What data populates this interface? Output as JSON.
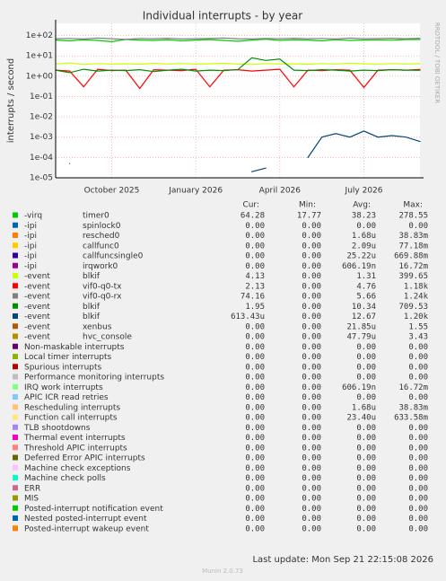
{
  "chart_data": {
    "type": "line",
    "title": "Individual interrupts - by year",
    "ylabel": "interrupts / second",
    "watermark": "RRDTOOL / TOBI OETIKER",
    "log_scale": true,
    "grid": true,
    "ylim": [
      1e-05,
      400
    ],
    "yticks": [
      {
        "value": 100,
        "label": "1e+02"
      },
      {
        "value": 10,
        "label": "1e+01"
      },
      {
        "value": 1,
        "label": "1e+00"
      },
      {
        "value": 0.1,
        "label": "1e-01"
      },
      {
        "value": 0.01,
        "label": "1e-02"
      },
      {
        "value": 0.001,
        "label": "1e-03"
      },
      {
        "value": 0.0001,
        "label": "1e-04"
      },
      {
        "value": 1e-05,
        "label": "1e-05"
      }
    ],
    "categories": [
      null,
      null,
      null,
      null,
      "October 2025",
      null,
      null,
      null,
      null,
      null,
      "January 2026",
      null,
      null,
      null,
      null,
      null,
      "April 2026",
      null,
      null,
      null,
      null,
      null,
      "July 2026",
      null,
      null,
      null,
      null
    ],
    "legend_headers": [
      "Cur:",
      "Min:",
      "Avg:",
      "Max:"
    ],
    "series": [
      {
        "name": "-virq",
        "label": "timer0",
        "color": "#00cc00",
        "values": [
          60,
          55,
          62,
          58,
          50,
          65,
          60,
          58,
          62,
          55,
          60,
          64,
          58,
          52,
          60,
          66,
          58,
          62,
          60,
          55,
          63,
          58,
          60,
          62,
          59,
          64,
          64.28
        ],
        "cur": "64.28",
        "min": "17.77",
        "avg": "38.23",
        "max": "278.55"
      },
      {
        "name": "-ipi",
        "label": "spinlock0",
        "color": "#0066b3",
        "cur": "0.00",
        "min": "0.00",
        "avg": "0.00",
        "max": "0.00"
      },
      {
        "name": "-ipi",
        "label": "resched0",
        "color": "#ff8000",
        "cur": "0.00",
        "min": "0.00",
        "avg": "1.68u",
        "max": "38.83m"
      },
      {
        "name": "-ipi",
        "label": "callfunc0",
        "color": "#ffcc00",
        "cur": "0.00",
        "min": "0.00",
        "avg": "2.09u",
        "max": "77.18m"
      },
      {
        "name": "-ipi",
        "label": "callfuncsingle0",
        "color": "#330099",
        "cur": "0.00",
        "min": "0.00",
        "avg": "25.22u",
        "max": "669.88m"
      },
      {
        "name": "-ipi",
        "label": "irqwork0",
        "color": "#990099",
        "cur": "0.00",
        "min": "0.00",
        "avg": "606.19n",
        "max": "16.72m"
      },
      {
        "name": "-event",
        "label": "blkif",
        "color": "#ccff00",
        "values": [
          4,
          4.5,
          3.8,
          4.2,
          4,
          4.1,
          3.9,
          4.3,
          4,
          4.2,
          4,
          4.1,
          4.3,
          4,
          3.8,
          4.2,
          4,
          4.1,
          3.9,
          4.2,
          4,
          4.3,
          4.1,
          4,
          4.2,
          4,
          4.13
        ],
        "cur": "4.13",
        "min": "0.00",
        "avg": "1.31",
        "max": "399.65"
      },
      {
        "name": "-event",
        "label": "vif0-q0-tx",
        "color": "#ff0000",
        "values": [
          2,
          1.8,
          0.3,
          2.2,
          1.9,
          2,
          0.25,
          2.1,
          2,
          1.9,
          2.2,
          0.3,
          2,
          2.1,
          1.8,
          2,
          2.2,
          0.3,
          2,
          1.9,
          2.1,
          2,
          0.28,
          2,
          2.1,
          2,
          2.13
        ],
        "cur": "2.13",
        "min": "0.00",
        "avg": "4.76",
        "max": "1.18k"
      },
      {
        "name": "-event",
        "label": "vif0-q0-rx",
        "color": "#808080",
        "values": [
          70,
          72,
          68,
          75,
          70,
          65,
          72,
          70,
          74,
          68,
          70,
          72,
          75,
          70,
          68,
          72,
          70,
          74,
          70,
          72,
          68,
          75,
          70,
          72,
          74,
          70,
          74.16
        ],
        "cur": "74.16",
        "min": "0.00",
        "avg": "5.66",
        "max": "1.24k"
      },
      {
        "name": "-event",
        "label": "blkif",
        "color": "#008f00",
        "values": [
          2,
          1.5,
          2.2,
          1.8,
          2,
          1.9,
          2.1,
          1.7,
          2,
          2.2,
          1.8,
          2,
          1.9,
          2.1,
          8,
          6,
          7,
          2,
          1.9,
          2.1,
          2,
          1.8,
          2,
          1.9,
          2.1,
          2,
          1.95
        ],
        "cur": "1.95",
        "min": "0.00",
        "avg": "10.34",
        "max": "709.53"
      },
      {
        "name": "-event",
        "label": "blkif",
        "color": "#00487d",
        "values": [
          null,
          5e-05,
          null,
          null,
          null,
          null,
          null,
          null,
          null,
          null,
          null,
          null,
          null,
          null,
          2e-05,
          3e-05,
          null,
          null,
          0.0001,
          0.001,
          0.0015,
          0.001,
          0.002,
          0.001,
          0.0012,
          0.001,
          0.00061343
        ],
        "cur": "613.43u",
        "min": "0.00",
        "avg": "12.67",
        "max": "1.20k"
      },
      {
        "name": "-event",
        "label": "xenbus",
        "color": "#b35a00",
        "cur": "0.00",
        "min": "0.00",
        "avg": "21.85u",
        "max": "1.55"
      },
      {
        "name": "-event",
        "label": "hvc_console",
        "color": "#b38f00",
        "cur": "0.00",
        "min": "0.00",
        "avg": "47.79u",
        "max": "3.43"
      },
      {
        "name": "Non-maskable interrupts",
        "color": "#6b006b",
        "cur": "0.00",
        "min": "0.00",
        "avg": "0.00",
        "max": "0.00"
      },
      {
        "name": "Local timer interrupts",
        "color": "#8fb300",
        "cur": "0.00",
        "min": "0.00",
        "avg": "0.00",
        "max": "0.00"
      },
      {
        "name": "Spurious interrupts",
        "color": "#b30000",
        "cur": "0.00",
        "min": "0.00",
        "avg": "0.00",
        "max": "0.00"
      },
      {
        "name": "Performance monitoring interrupts",
        "color": "#bebebe",
        "cur": "0.00",
        "min": "0.00",
        "avg": "0.00",
        "max": "0.00"
      },
      {
        "name": "IRQ work interrupts",
        "color": "#80ff80",
        "cur": "0.00",
        "min": "0.00",
        "avg": "606.19n",
        "max": "16.72m"
      },
      {
        "name": "APIC ICR read retries",
        "color": "#80c9ff",
        "cur": "0.00",
        "min": "0.00",
        "avg": "0.00",
        "max": "0.00"
      },
      {
        "name": "Rescheduling interrupts",
        "color": "#ffc080",
        "cur": "0.00",
        "min": "0.00",
        "avg": "1.68u",
        "max": "38.83m"
      },
      {
        "name": "Function call interrupts",
        "color": "#ffe680",
        "cur": "0.00",
        "min": "0.00",
        "avg": "23.40u",
        "max": "633.58m"
      },
      {
        "name": "TLB shootdowns",
        "color": "#aa80ff",
        "cur": "0.00",
        "min": "0.00",
        "avg": "0.00",
        "max": "0.00"
      },
      {
        "name": "Thermal event interrupts",
        "color": "#ee00cc",
        "cur": "0.00",
        "min": "0.00",
        "avg": "0.00",
        "max": "0.00"
      },
      {
        "name": "Threshold APIC interrupts",
        "color": "#ff8080",
        "cur": "0.00",
        "min": "0.00",
        "avg": "0.00",
        "max": "0.00"
      },
      {
        "name": "Deferred Error APIC interrupts",
        "color": "#666600",
        "cur": "0.00",
        "min": "0.00",
        "avg": "0.00",
        "max": "0.00"
      },
      {
        "name": "Machine check exceptions",
        "color": "#ffbfff",
        "cur": "0.00",
        "min": "0.00",
        "avg": "0.00",
        "max": "0.00"
      },
      {
        "name": "Machine check polls",
        "color": "#00ffcc",
        "cur": "0.00",
        "min": "0.00",
        "avg": "0.00",
        "max": "0.00"
      },
      {
        "name": "ERR",
        "color": "#cc6699",
        "cur": "0.00",
        "min": "0.00",
        "avg": "0.00",
        "max": "0.00"
      },
      {
        "name": "MIS",
        "color": "#999900",
        "cur": "0.00",
        "min": "0.00",
        "avg": "0.00",
        "max": "0.00"
      },
      {
        "name": "Posted-interrupt notification event",
        "color": "#00cc00",
        "cur": "0.00",
        "min": "0.00",
        "avg": "0.00",
        "max": "0.00"
      },
      {
        "name": "Nested posted-interrupt event",
        "color": "#0066b3",
        "cur": "0.00",
        "min": "0.00",
        "avg": "0.00",
        "max": "0.00"
      },
      {
        "name": "Posted-interrupt wakeup event",
        "color": "#ff8000",
        "cur": "0.00",
        "min": "0.00",
        "avg": "0.00",
        "max": "0.00"
      }
    ],
    "footer": "Last update: Mon Sep 21 22:15:08 2026",
    "version": "Munin 2.0.73"
  }
}
